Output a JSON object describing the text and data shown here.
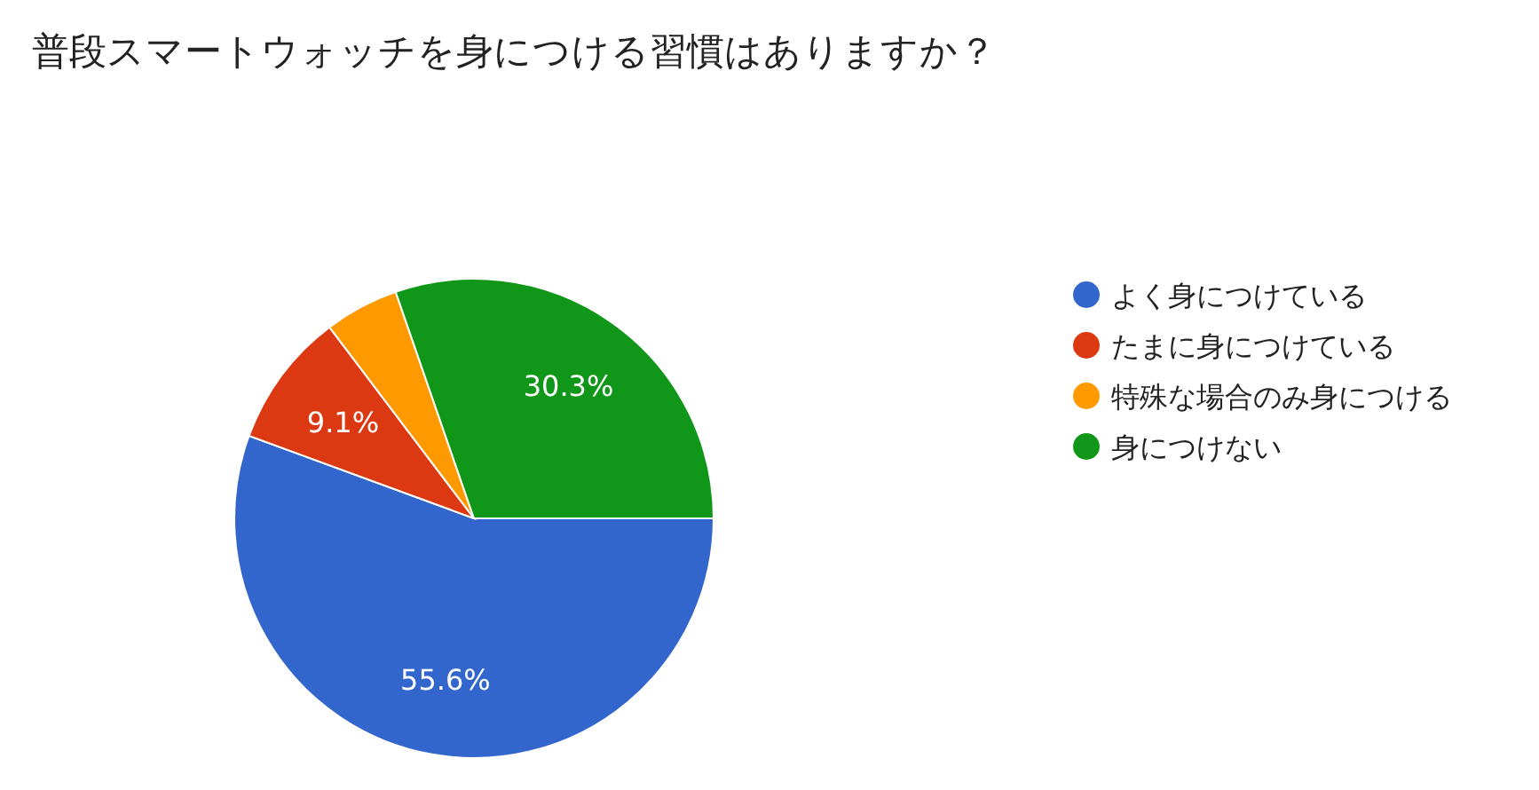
{
  "chart_data": {
    "type": "pie",
    "title": "普段スマートウォッチを身につける習慣はありますか？",
    "categories": [
      "よく身につけている",
      "たまに身につけている",
      "特殊な場合のみ身につける",
      "身につけない"
    ],
    "values": [
      55.6,
      9.1,
      5.0,
      30.3
    ],
    "value_labels": [
      "55.6%",
      "9.1%",
      null,
      "30.3%"
    ],
    "colors": [
      "#3366cc",
      "#dc3912",
      "#ff9900",
      "#109618"
    ],
    "legend": "right"
  }
}
